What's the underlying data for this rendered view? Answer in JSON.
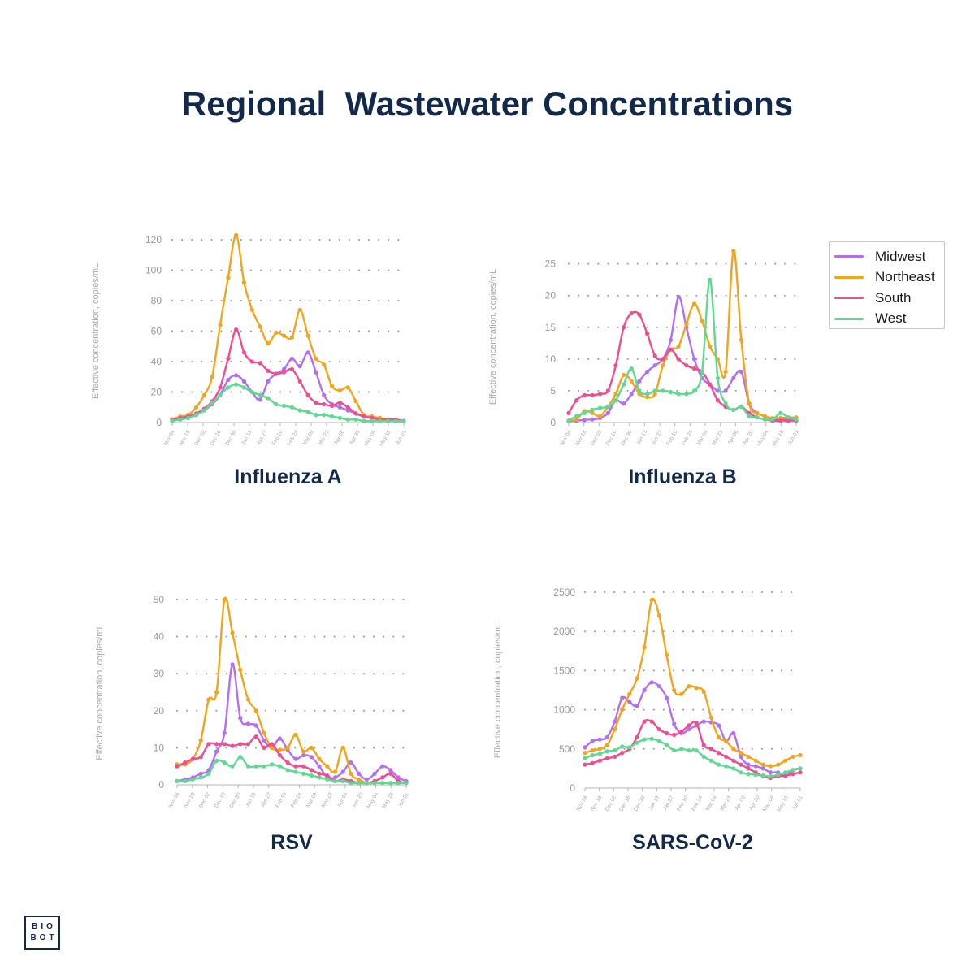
{
  "title": "Regional  Wastewater Concentrations",
  "logo": {
    "line1": "BIO",
    "line2": "BOT"
  },
  "colors": {
    "Midwest": "#b36ff0",
    "Northeast": "#f2a51c",
    "South": "#ef4d8f",
    "West": "#5fd992"
  },
  "legend": [
    "Midwest",
    "Northeast",
    "South",
    "West"
  ],
  "x_ticks": [
    "Nov 04",
    "Nov 18",
    "Dec 02",
    "Dec 16",
    "Dec 30",
    "Jan 13",
    "Jan 27",
    "Feb 10",
    "Feb 24",
    "Mar 09",
    "Mar 23",
    "Apr 06",
    "Apr 20",
    "May 04",
    "May 18",
    "Jun 01"
  ],
  "chart_data": [
    {
      "type": "line",
      "title": "Influenza A",
      "ylabel": "Effective concentration, copies/mL",
      "ylim": [
        0,
        120
      ],
      "y_ticks": [
        0,
        20,
        40,
        60,
        80,
        100,
        120
      ],
      "series": [
        {
          "name": "Midwest",
          "values": [
            2,
            2,
            3,
            5,
            8,
            12,
            18,
            28,
            31,
            27,
            20,
            15,
            27,
            32,
            35,
            42,
            37,
            46,
            33,
            18,
            12,
            10,
            8,
            6,
            4,
            3,
            2,
            2,
            1,
            1
          ]
        },
        {
          "name": "Northeast",
          "values": [
            2,
            4,
            5,
            10,
            18,
            30,
            64,
            95,
            123,
            92,
            74,
            63,
            52,
            59,
            57,
            56,
            74,
            57,
            42,
            38,
            24,
            21,
            23,
            14,
            5,
            4,
            3,
            2,
            1,
            1
          ]
        },
        {
          "name": "South",
          "values": [
            2,
            3,
            4,
            6,
            9,
            14,
            23,
            42,
            61,
            46,
            40,
            39,
            34,
            32,
            33,
            35,
            27,
            18,
            13,
            12,
            11,
            13,
            10,
            6,
            4,
            3,
            2,
            2,
            2,
            1
          ]
        },
        {
          "name": "West",
          "values": [
            1,
            2,
            3,
            5,
            8,
            13,
            18,
            23,
            25,
            23,
            20,
            18,
            16,
            12,
            11,
            10,
            8,
            7,
            5,
            5,
            4,
            3,
            2,
            2,
            1,
            1,
            1,
            1,
            1,
            1
          ]
        }
      ]
    },
    {
      "type": "line",
      "title": "Influenza B",
      "ylabel": "Effective concentration, copies/mL",
      "ylim": [
        0,
        27
      ],
      "y_ticks": [
        0,
        5,
        10,
        15,
        20,
        25
      ],
      "series": [
        {
          "name": "Midwest",
          "values": [
            0.2,
            0.3,
            0.4,
            0.5,
            0.7,
            1.5,
            3.5,
            3,
            4.5,
            6.5,
            8,
            9,
            10,
            13,
            19.8,
            15,
            10,
            7,
            6,
            5,
            5,
            7,
            8,
            3,
            1.5,
            1,
            0.5,
            0.5,
            0.5,
            0.5
          ]
        },
        {
          "name": "Northeast",
          "values": [
            0.3,
            0.5,
            1.8,
            1.5,
            1,
            2.5,
            4.5,
            7.5,
            6.5,
            4.5,
            4,
            4.5,
            9,
            11.5,
            12,
            15.5,
            18.7,
            16,
            12,
            10,
            8,
            27,
            13,
            3,
            1.5,
            1,
            0.7,
            0.7,
            0.8,
            0.8
          ]
        },
        {
          "name": "South",
          "values": [
            1.5,
            3.5,
            4.3,
            4.3,
            4.5,
            5,
            9,
            15,
            17.2,
            17,
            14,
            10.5,
            10,
            11.5,
            10,
            9,
            8.5,
            8,
            6,
            3.5,
            2.5,
            2,
            2.5,
            1.5,
            0.8,
            0.5,
            0.3,
            0.3,
            0.3,
            0.3
          ]
        },
        {
          "name": "West",
          "values": [
            0.3,
            1,
            1.5,
            2,
            2.3,
            2.5,
            3.5,
            6,
            8.5,
            5,
            4.5,
            5,
            5,
            4.8,
            4.5,
            4.5,
            5,
            8,
            22.5,
            7,
            3,
            2,
            2.5,
            1,
            0.8,
            0.5,
            0.5,
            1.5,
            0.8,
            0.5
          ]
        }
      ]
    },
    {
      "type": "line",
      "title": "RSV",
      "ylabel": "Effective concentration, copies/mL",
      "ylim": [
        0,
        50
      ],
      "y_ticks": [
        0,
        10,
        20,
        30,
        40,
        50
      ],
      "series": [
        {
          "name": "Midwest",
          "values": [
            1,
            1.5,
            2,
            3,
            4,
            9,
            14,
            32.5,
            18,
            16.5,
            16,
            12,
            10,
            12.5,
            9.5,
            7,
            8,
            7.5,
            5,
            2,
            2,
            3.5,
            6,
            3,
            1.5,
            3,
            5,
            4,
            2,
            1
          ]
        },
        {
          "name": "Northeast",
          "values": [
            5.5,
            5.5,
            7,
            12,
            23,
            25,
            50,
            41,
            31,
            23,
            20,
            14,
            10,
            9.5,
            10,
            13.5,
            9,
            10,
            7,
            5,
            3.5,
            10,
            3,
            1.5,
            0.5,
            0.5,
            0.5,
            0.5,
            0.5,
            0.5
          ]
        },
        {
          "name": "South",
          "values": [
            5,
            6,
            7,
            7.5,
            11,
            11,
            11,
            10.5,
            11,
            11,
            13,
            10,
            11,
            8,
            6,
            5,
            5,
            4,
            3,
            2.5,
            1,
            1.5,
            1,
            0.5,
            0.5,
            1,
            2,
            3,
            1,
            0.5
          ]
        },
        {
          "name": "West",
          "values": [
            1,
            1,
            1.5,
            2,
            3,
            6.5,
            6,
            5,
            7.5,
            5,
            5,
            5,
            5.5,
            5,
            4,
            3.5,
            3,
            2.5,
            2,
            1.5,
            1,
            1,
            0.5,
            0.5,
            0.5,
            0.5,
            0.5,
            0.5,
            0.5,
            0.5
          ]
        }
      ]
    },
    {
      "type": "line",
      "title": "SARS-CoV-2",
      "ylabel": "Effective concentration, copies/mL",
      "ylim": [
        0,
        2500
      ],
      "y_ticks": [
        0,
        500,
        1000,
        1500,
        2000,
        2500
      ],
      "series": [
        {
          "name": "Midwest",
          "values": [
            520,
            600,
            620,
            650,
            850,
            1150,
            1100,
            1050,
            1250,
            1350,
            1300,
            1150,
            820,
            700,
            750,
            800,
            850,
            840,
            800,
            600,
            700,
            400,
            300,
            280,
            250,
            200,
            200,
            150,
            230,
            250
          ]
        },
        {
          "name": "Northeast",
          "values": [
            450,
            480,
            500,
            550,
            750,
            1000,
            1200,
            1400,
            1800,
            2400,
            2200,
            1700,
            1250,
            1200,
            1300,
            1280,
            1230,
            900,
            650,
            600,
            500,
            450,
            400,
            350,
            300,
            280,
            300,
            350,
            400,
            420
          ]
        },
        {
          "name": "South",
          "values": [
            300,
            320,
            350,
            380,
            400,
            450,
            500,
            650,
            850,
            850,
            750,
            700,
            680,
            720,
            800,
            830,
            550,
            500,
            450,
            400,
            350,
            300,
            250,
            200,
            150,
            130,
            150,
            160,
            180,
            200
          ]
        },
        {
          "name": "West",
          "values": [
            380,
            420,
            440,
            470,
            480,
            530,
            520,
            580,
            620,
            630,
            600,
            550,
            480,
            500,
            480,
            480,
            400,
            350,
            300,
            280,
            250,
            200,
            180,
            170,
            160,
            150,
            170,
            200,
            230,
            250
          ]
        }
      ]
    }
  ]
}
